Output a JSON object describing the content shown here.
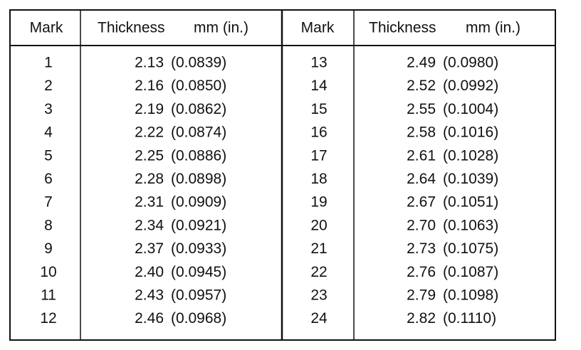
{
  "header": [
    "Mark",
    "Thickness",
    "mm (in.)",
    "Mark",
    "Thickness",
    "mm (in.)"
  ],
  "rows": [
    [
      "1",
      "2.13",
      "(0.0839)",
      "13",
      "2.49",
      "(0.0980)"
    ],
    [
      "2",
      "2.16",
      "(0.0850)",
      "14",
      "2.52",
      "(0.0992)"
    ],
    [
      "3",
      "2.19",
      "(0.0862)",
      "15",
      "2.55",
      "(0.1004)"
    ],
    [
      "4",
      "2.22",
      "(0.0874)",
      "16",
      "2.58",
      "(0.1016)"
    ],
    [
      "5",
      "2.25",
      "(0.0886)",
      "17",
      "2.61",
      "(0.1028)"
    ],
    [
      "6",
      "2.28",
      "(0.0898)",
      "18",
      "2.64",
      "(0.1039)"
    ],
    [
      "7",
      "2.31",
      "(0.0909)",
      "19",
      "2.67",
      "(0.1051)"
    ],
    [
      "8",
      "2.34",
      "(0.0921)",
      "20",
      "2.70",
      "(0.1063)"
    ],
    [
      "9",
      "2.37",
      "(0.0933)",
      "21",
      "2.73",
      "(0.1075)"
    ],
    [
      "10",
      "2.40",
      "(0.0945)",
      "22",
      "2.76",
      "(0.1087)"
    ],
    [
      "11",
      "2.43",
      "(0.0957)",
      "23",
      "2.79",
      "(0.1098)"
    ],
    [
      "12",
      "2.46",
      "(0.0968)",
      "24",
      "2.82",
      "(0.1110)"
    ]
  ]
}
